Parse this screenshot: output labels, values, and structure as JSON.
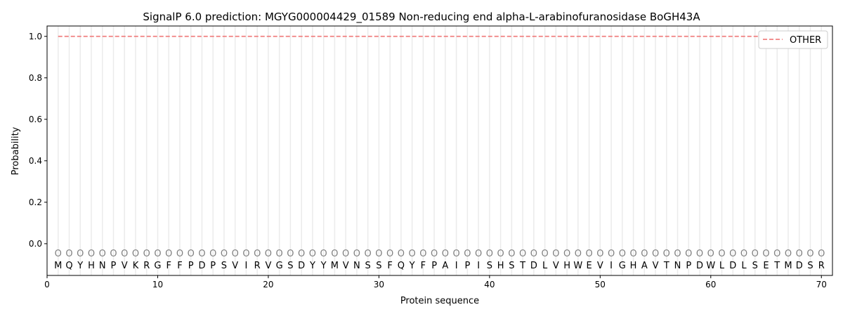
{
  "chart_data": {
    "type": "line",
    "title": "SignalP 6.0 prediction: MGYG000004429_01589 Non-reducing end alpha-L-arabinofuranosidase BoGH43A",
    "xlabel": "Protein sequence",
    "ylabel": "Probability",
    "xlim": [
      0,
      71
    ],
    "ylim": [
      -0.153,
      1.05
    ],
    "xticks": [
      0,
      10,
      20,
      30,
      40,
      50,
      60,
      70
    ],
    "yticks": [
      "0.0",
      "0.2",
      "0.4",
      "0.6",
      "0.8",
      "1.0"
    ],
    "sequence": "MQYHNPVKRGFFPDPSVIRVGSDYYMVNSSFQYFPAIPISHSTDLVHWEVIGHAVTNPDWLDLSETMDSR",
    "region_label": "O",
    "series": [
      {
        "name": "OTHER",
        "color": "#f08080",
        "style": "dashed",
        "x_start": 1,
        "x_end": 70,
        "value": 1.0
      }
    ],
    "legend": "top-right",
    "grid": "vertical per residue"
  }
}
